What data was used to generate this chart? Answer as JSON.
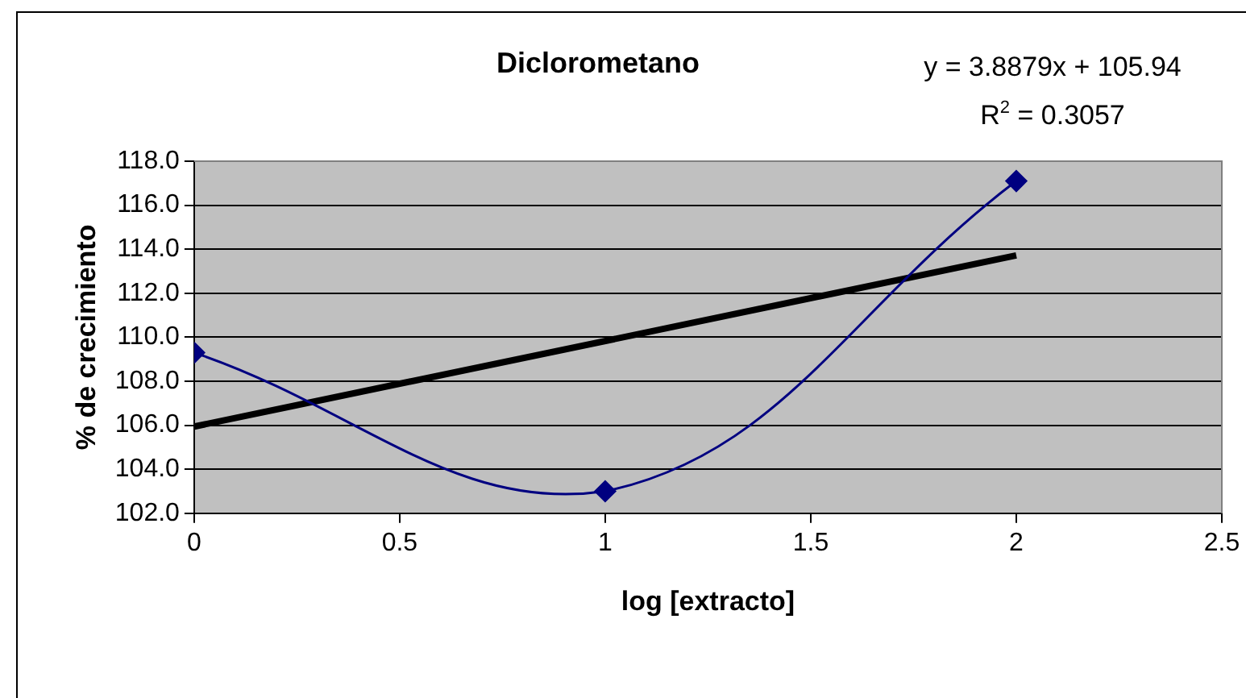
{
  "chart_data": {
    "type": "line",
    "title": "Diclorometano",
    "xlabel": "log [extracto]",
    "ylabel": "% de crecimiento",
    "annotations": [
      "y = 3.8879x + 105.94",
      "R$^{2}$ = 0.3057"
    ],
    "series": [
      {
        "x": [
          0,
          1,
          2
        ],
        "values": [
          109.3,
          103.0,
          117.1
        ],
        "color": "#000080",
        "marker": "diamond"
      },
      {
        "type": "line",
        "x": [
          0,
          2
        ],
        "values": [
          105.94,
          113.72
        ],
        "color": "#000000",
        "marker": "none"
      }
    ],
    "xlim": [
      0,
      2.5
    ],
    "xticks": [
      0,
      0.5,
      1,
      1.5,
      2,
      2.5
    ],
    "ylim": [
      102,
      118
    ],
    "yticks": [
      {
        "value": 102,
        "label": "102.0"
      },
      {
        "value": 104,
        "label": "104.0"
      },
      {
        "value": 106,
        "label": "106.0"
      },
      {
        "value": 108,
        "label": "108.0"
      },
      {
        "value": 110,
        "label": "110.0"
      },
      {
        "value": 112,
        "label": "112.0"
      },
      {
        "value": 114,
        "label": "114.0"
      },
      {
        "value": 116,
        "label": "116.0"
      },
      {
        "value": 118,
        "label": "118.0"
      }
    ],
    "grid": "y",
    "legend": false
  }
}
